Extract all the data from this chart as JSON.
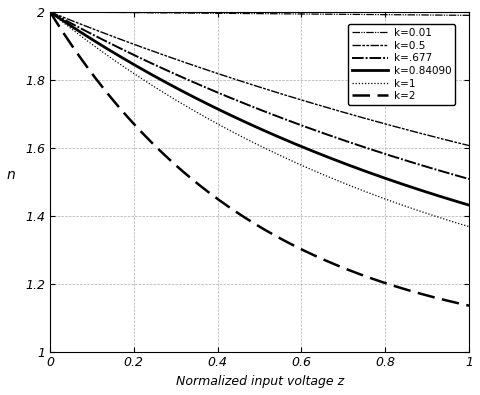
{
  "title": "",
  "xlabel": "Normalized input voltage z",
  "ylabel": "n",
  "xlim": [
    0,
    1
  ],
  "ylim": [
    1,
    2
  ],
  "xticks": [
    0,
    0.2,
    0.4,
    0.6,
    0.8,
    1
  ],
  "yticks": [
    1,
    1.2,
    1.4,
    1.6,
    1.8,
    2
  ],
  "k_values": [
    0.01,
    0.5,
    0.677,
    0.8409,
    1.0,
    2.0
  ],
  "k_labels": [
    "k=0.01",
    "k=0.5",
    "k=.677",
    "k=0.84090",
    "k=1",
    "k=2"
  ],
  "line_widths": [
    0.9,
    1.0,
    1.4,
    2.0,
    0.9,
    1.8
  ],
  "legend_loc": "upper right",
  "background_color": "#ffffff",
  "grid_color": "#aaaaaa",
  "grid_linestyle": "--",
  "grid_linewidth": 0.5
}
